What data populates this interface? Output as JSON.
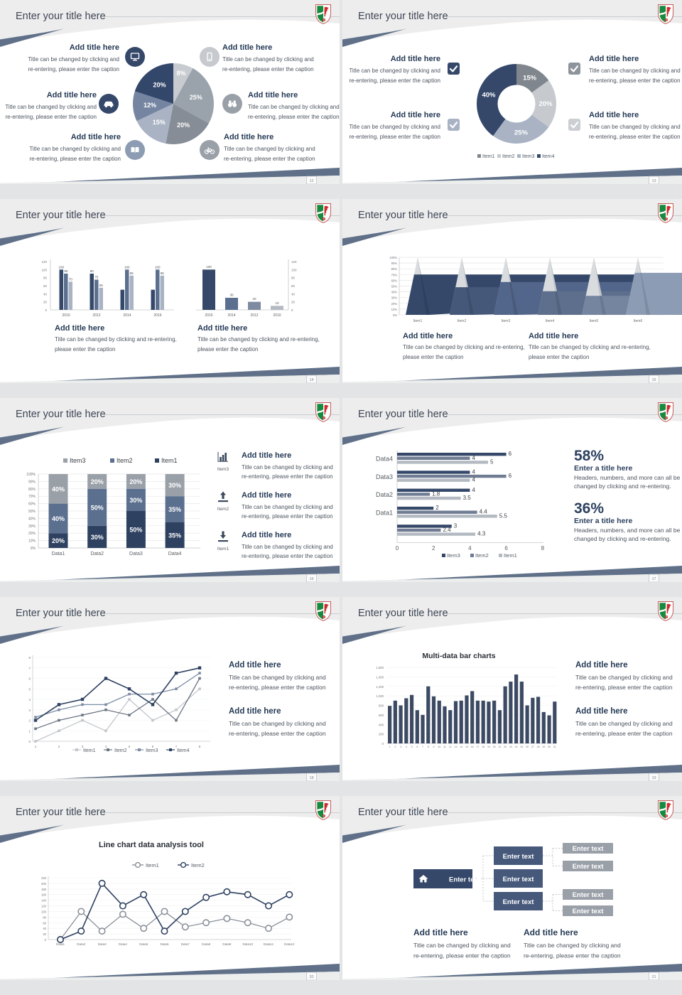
{
  "page": {
    "background": "#e3e4e5"
  },
  "strings": {
    "slide_title": "Enter your title here",
    "add_title": "Add title here",
    "cap1": "Title can be changed by clicking and",
    "cap2": "re-entering, please enter the caption",
    "capw1": "Title can be changed by clicking and re-entering,",
    "capw2": "please enter the caption",
    "enter_title": "Enter a title here",
    "stat1": "Headers, numbers, and more can all be",
    "stat2": "changed by clicking and re-entering.",
    "enter_text": "Enter text"
  },
  "palette": {
    "navy": "#2e4160",
    "navy2": "#35486a",
    "slate": "#5b6f8f",
    "slateLight": "#8d9cb3",
    "blueGray": "#a9b3c4",
    "gray": "#9aa0a8",
    "grayDark": "#80868d",
    "grayLight": "#c6c9cd",
    "band": "#5f7088",
    "topGray": "#ededee",
    "titleText": "#3d4653",
    "calloutTitle": "#253a55",
    "captionText": "#4c545e",
    "axisText": "#70757c",
    "barNavy": "#3c4a63"
  },
  "logo": {
    "green": "#168a3e",
    "red": "#cf2b2b",
    "white": "#ffffff",
    "border": "#c75b5b"
  },
  "slides": [
    {
      "page_num": "12",
      "type": "pie_callouts",
      "chart_data": {
        "type": "pie",
        "values": [
          8,
          25,
          20,
          15,
          12,
          20
        ],
        "labels": [
          "8%",
          "25%",
          "20%",
          "15%",
          "12%",
          "20%"
        ],
        "colors": [
          "#c8cbcf",
          "#9aa2ab",
          "#868d96",
          "#a9b3c3",
          "#7585a1",
          "#33476b"
        ]
      },
      "callouts": [
        {
          "icon": "monitor",
          "icon_color": "#35486a",
          "side": "left"
        },
        {
          "icon": "car",
          "icon_color": "#35486a",
          "side": "left"
        },
        {
          "icon": "book",
          "icon_color": "#8d9cb3",
          "side": "left"
        },
        {
          "icon": "smartphone",
          "icon_color": "#c6c9cd",
          "side": "right"
        },
        {
          "icon": "binoculars",
          "icon_color": "#9aa0a8",
          "side": "right"
        },
        {
          "icon": "bicycle",
          "icon_color": "#9aa0a8",
          "side": "right"
        }
      ]
    },
    {
      "page_num": "13",
      "type": "donut_callouts",
      "chart_data": {
        "type": "pie",
        "values": [
          15,
          20,
          25,
          40
        ],
        "labels": [
          "15%",
          "20%",
          "25%",
          "40%"
        ],
        "colors": [
          "#80868d",
          "#c6c9cd",
          "#a9b3c4",
          "#35486a"
        ],
        "legend": [
          "Item1",
          "Item2",
          "Item3",
          "Item4"
        ],
        "legend_colors": [
          "#80868d",
          "#c6c9cd",
          "#a9b3c4",
          "#35486a"
        ]
      },
      "checkboxes": [
        "#35486a",
        "#8e949b",
        "#a9b3c4",
        "#cbced2"
      ]
    },
    {
      "page_num": "14",
      "type": "dual_bar",
      "chart_data": [
        {
          "type": "bar",
          "categories": [
            "2010",
            "2012",
            "2014",
            "2016"
          ],
          "series": [
            {
              "name": "s1",
              "color": "#35486a",
              "values": [
                100,
                90,
                50,
                50
              ]
            },
            {
              "name": "s2",
              "color": "#5b6f8f",
              "values": [
                90,
                75,
                100,
                100
              ]
            },
            {
              "name": "s3",
              "color": "#a9b3c4",
              "values": [
                70,
                55,
                85,
                85
              ]
            }
          ],
          "bar_labels": [
            [
              "100",
              "90",
              "70"
            ],
            [
              "90",
              "75",
              "55"
            ],
            [
              "",
              "100",
              "85"
            ],
            [
              "",
              "100",
              "85"
            ]
          ],
          "ylim": [
            0,
            120
          ],
          "yticks": [
            "120",
            "100",
            "80",
            "60",
            "40",
            "20",
            "0"
          ]
        },
        {
          "type": "bar",
          "categories": [
            "2016",
            "2014",
            "2012",
            "2010"
          ],
          "values": [
            100,
            30,
            20,
            10
          ],
          "bar_labels": [
            "100",
            "30",
            "20",
            "10"
          ],
          "colors": [
            "#35486a",
            "#5b6f8f",
            "#7d8aa0",
            "#b4bac2"
          ],
          "ylim": [
            0,
            120
          ],
          "yticks": [
            "120",
            "100",
            "80",
            "60",
            "40",
            "20",
            "0"
          ]
        }
      ]
    },
    {
      "page_num": "15",
      "type": "pyramid",
      "chart_data": {
        "type": "pyramid",
        "categories": [
          "Item1",
          "Item2",
          "Item3",
          "Item4",
          "Item5",
          "Item6"
        ],
        "values": [
          70,
          48,
          57,
          41,
          33,
          73
        ],
        "colors": [
          "#35486a",
          "#46587a",
          "#52658a",
          "#5d6f8d",
          "#7585a0",
          "#8d9cb5"
        ],
        "top_color": "#d9dcdf",
        "yticks": [
          "100%",
          "90%",
          "80%",
          "70%",
          "60%",
          "50%",
          "40%",
          "30%",
          "20%",
          "10%",
          "0%"
        ]
      }
    },
    {
      "page_num": "16",
      "type": "stacked_bar",
      "chart_data": {
        "type": "stacked_bar",
        "categories": [
          "Data1",
          "Data2",
          "Data3",
          "Data4"
        ],
        "series": [
          {
            "name": "Item1",
            "color": "#2e4160",
            "values": [
              20,
              30,
              50,
              35
            ]
          },
          {
            "name": "Item2",
            "color": "#5b6f8f",
            "values": [
              40,
              50,
              30,
              35
            ]
          },
          {
            "name": "Item3",
            "color": "#9aa0a8",
            "values": [
              40,
              20,
              20,
              30
            ]
          }
        ],
        "legend": [
          "Item3",
          "Item2",
          "Item1"
        ],
        "legend_colors": [
          "#9aa0a8",
          "#5b6f8f",
          "#2e4160"
        ],
        "yticks": [
          "100%",
          "90%",
          "80%",
          "70%",
          "60%",
          "50%",
          "40%",
          "30%",
          "20%",
          "10%",
          "0%"
        ]
      },
      "callouts": [
        {
          "icon": "bar-chart",
          "label": "Item3"
        },
        {
          "icon": "upload",
          "label": "Item2"
        },
        {
          "icon": "download",
          "label": "Item1"
        }
      ]
    },
    {
      "page_num": "17",
      "type": "hbar",
      "chart_data": {
        "type": "bar_horizontal",
        "group_labels": [
          "Data4",
          "Data3",
          "Data2",
          "Data1",
          ""
        ],
        "groups": [
          [
            6,
            4,
            5
          ],
          [
            4,
            6,
            4
          ],
          [
            4,
            1.8,
            3.5
          ],
          [
            2,
            4.4,
            5.5
          ],
          [
            3,
            2.4,
            4.3
          ]
        ],
        "series_names": [
          "Item3",
          "Item2",
          "Item1"
        ],
        "series_colors": [
          "#35486a",
          "#6f7c93",
          "#b4bac2"
        ],
        "xticks": [
          "0",
          "2",
          "4",
          "6",
          "8"
        ],
        "xlim": [
          0,
          8
        ]
      },
      "stats": [
        {
          "value": "58%"
        },
        {
          "value": "36%"
        }
      ]
    },
    {
      "page_num": "18",
      "type": "line4",
      "chart_data": {
        "type": "line",
        "x": [
          "1",
          "2",
          "3",
          "4",
          "5",
          "6",
          "7",
          "8"
        ],
        "ylim": [
          0,
          8
        ],
        "yticks": [
          "8",
          "7",
          "6",
          "5",
          "4",
          "3",
          "2",
          "1",
          "0"
        ],
        "series": [
          {
            "name": "Item1",
            "color": "#c3c6ca",
            "values": [
              0,
              1,
              2,
              1,
              4,
              2,
              3,
              5
            ]
          },
          {
            "name": "Item2",
            "color": "#6d7684",
            "values": [
              1.2,
              2,
              2.5,
              3,
              2.5,
              4,
              2,
              6
            ]
          },
          {
            "name": "Item3",
            "color": "#7c8ca4",
            "values": [
              2.3,
              3,
              3.5,
              3.5,
              4.5,
              4.5,
              5,
              6.5
            ]
          },
          {
            "name": "Item4",
            "color": "#2e4160",
            "values": [
              2,
              3.5,
              4,
              6,
              5,
              3.5,
              6.5,
              7
            ]
          }
        ]
      }
    },
    {
      "page_num": "19",
      "type": "multibar",
      "title": "Multi-data bar charts",
      "chart_data": {
        "type": "bar",
        "color": "#3c4a63",
        "ylim": [
          0,
          1600
        ],
        "ytick_labels": [
          "1,600",
          "1,400",
          "1,200",
          "1,000",
          "800",
          "600",
          "400",
          "200",
          "0"
        ],
        "x": [
          "1",
          "2",
          "3",
          "4",
          "5",
          "6",
          "7",
          "8",
          "9",
          "10",
          "11",
          "12",
          "13",
          "14",
          "15",
          "16",
          "17",
          "18",
          "19",
          "20",
          "21",
          "22",
          "23",
          "24",
          "25",
          "26",
          "27",
          "28",
          "29",
          "30",
          "31"
        ],
        "values": [
          790,
          900,
          800,
          950,
          1020,
          700,
          600,
          1200,
          990,
          900,
          780,
          700,
          890,
          900,
          1010,
          1100,
          900,
          900,
          880,
          900,
          700,
          1200,
          1300,
          1450,
          1300,
          800,
          960,
          980,
          660,
          590,
          880
        ]
      }
    },
    {
      "page_num": "20",
      "type": "line2",
      "title": "Line chart data analysis tool",
      "chart_data": {
        "type": "line",
        "categories": [
          "Data1",
          "Data2",
          "Data3",
          "Data4",
          "Data5",
          "Data6",
          "Data7",
          "Data8",
          "Data9",
          "Data10",
          "Data11",
          "Data12"
        ],
        "ylim": [
          0,
          220
        ],
        "yticks": [
          "220",
          "200",
          "180",
          "160",
          "140",
          "120",
          "100",
          "80",
          "60",
          "40",
          "20",
          "0"
        ],
        "series": [
          {
            "name": "Item1",
            "color": "#8a9099",
            "values": [
              0,
              100,
              30,
              90,
              40,
              100,
              45,
              60,
              75,
              60,
              40,
              80
            ]
          },
          {
            "name": "Item2",
            "color": "#2e4160",
            "values": [
              0,
              30,
              200,
              120,
              160,
              30,
              100,
              150,
              170,
              160,
              120,
              160
            ]
          }
        ]
      }
    },
    {
      "page_num": "21",
      "type": "orgflow",
      "flow": {
        "root": {
          "label": "Enter text",
          "color": "#35486a"
        },
        "mid_color": "#46597b",
        "mid": [
          {
            "label": "Enter text"
          },
          {
            "label": "Enter text"
          },
          {
            "label": "Enter text"
          }
        ],
        "leaf_color": "#9aa0a8",
        "leaves": [
          {
            "label": "Enter text"
          },
          {
            "label": "Enter text"
          },
          {
            "label": "Enter text"
          },
          {
            "label": "Enter text"
          }
        ]
      }
    }
  ]
}
